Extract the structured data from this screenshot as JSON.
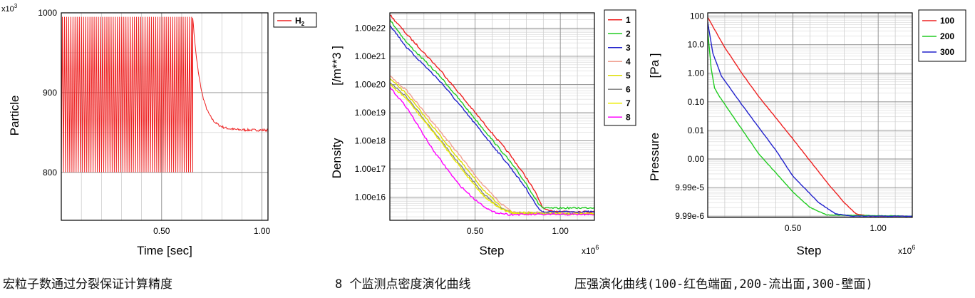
{
  "chart_data": [
    {
      "type": "line",
      "ylabel": "Particle",
      "xlabel": "Time [sec]",
      "y_scale_label": "x10^3",
      "y_scale_label_parts": {
        "base": "x10",
        "exp": "3"
      },
      "x_range": [
        0.0,
        1.03
      ],
      "y_range": [
        740,
        1000
      ],
      "x_ticks": [
        {
          "v": 0.5,
          "label": "0.50"
        },
        {
          "v": 1.0,
          "label": "1.00"
        }
      ],
      "y_ticks": [
        {
          "v": 1000,
          "label": "1000"
        },
        {
          "v": 900,
          "label": "900"
        },
        {
          "v": 800,
          "label": "800"
        }
      ],
      "grid": true,
      "legend_position": "outside-right",
      "series": [
        {
          "name": "H2",
          "name_parts": {
            "base": "H",
            "sub": "2"
          },
          "color": "#ee2222",
          "oscillation": {
            "x_start": 0.0,
            "x_end": 0.655,
            "cycles": 62,
            "high": 995,
            "low": 800
          },
          "decay": {
            "x_start": 0.655,
            "x_end": 1.03,
            "from": 995,
            "to": 853
          },
          "startup": {
            "x": 0.0,
            "from": 745,
            "to": 800
          }
        }
      ]
    },
    {
      "type": "line",
      "ylabel": "Density",
      "yunit": "[/m**3  ]",
      "xlabel": "Step",
      "x_scale_label": "x10^6",
      "x_scale_label_parts": {
        "base": "x10",
        "exp": "6"
      },
      "y_scale": "log",
      "x_range": [
        0.0,
        1.2
      ],
      "y_range": [
        1500000000000000.0,
        3.5e+22
      ],
      "x_ticks": [
        {
          "v": 0.5,
          "label": "0.50"
        },
        {
          "v": 1.0,
          "label": "1.00"
        }
      ],
      "y_ticks": [
        {
          "v": 1e+22,
          "label": "1.00e22"
        },
        {
          "v": 1e+21,
          "label": "1.00e21"
        },
        {
          "v": 1e+20,
          "label": "1.00e20"
        },
        {
          "v": 1e+19,
          "label": "1.00e19"
        },
        {
          "v": 1e+18,
          "label": "1.00e18"
        },
        {
          "v": 1e+17,
          "label": "1.00e17"
        },
        {
          "v": 1e+16,
          "label": "1.00e16"
        }
      ],
      "grid": true,
      "legend_position": "outside-right",
      "series": [
        {
          "name": "1",
          "color": "#ee2222",
          "points": [
            [
              0,
              3e+22
            ],
            [
              0.1,
              6e+21
            ],
            [
              0.3,
              3e+20
            ],
            [
              0.5,
              1e+19
            ],
            [
              0.7,
              3.5e+17
            ],
            [
              0.8,
              5e+16
            ],
            [
              0.85,
              1.6e+16
            ],
            [
              0.9,
              4000000000000000.0
            ],
            [
              0.93,
              3200000000000000.0
            ],
            [
              1.2,
              3000000000000000.0
            ]
          ]
        },
        {
          "name": "2",
          "color": "#22cc22",
          "points": [
            [
              0,
              2e+22
            ],
            [
              0.1,
              3e+21
            ],
            [
              0.3,
              1.8e+20
            ],
            [
              0.5,
              6e+18
            ],
            [
              0.7,
              2e+17
            ],
            [
              0.8,
              3e+16
            ],
            [
              0.87,
              6000000000000000.0
            ],
            [
              0.9,
              4000000000000000.0
            ],
            [
              1.2,
              4200000000000000.0
            ]
          ]
        },
        {
          "name": "3",
          "color": "#2222cc",
          "points": [
            [
              0,
              1.3e+22
            ],
            [
              0.1,
              2e+21
            ],
            [
              0.3,
              1.2e+20
            ],
            [
              0.5,
              4e+18
            ],
            [
              0.7,
              1.3e+17
            ],
            [
              0.8,
              2e+16
            ],
            [
              0.87,
              4000000000000000.0
            ],
            [
              0.9,
              3000000000000000.0
            ],
            [
              1.2,
              3000000000000000.0
            ]
          ]
        },
        {
          "name": "4",
          "color": "#f0a090",
          "points": [
            [
              0,
              2e+20
            ],
            [
              0.1,
              6e+19
            ],
            [
              0.3,
              2e+18
            ],
            [
              0.45,
              1.5e+17
            ],
            [
              0.55,
              2.5e+16
            ],
            [
              0.65,
              6000000000000000.0
            ],
            [
              0.72,
              3000000000000000.0
            ],
            [
              1.2,
              2500000000000000.0
            ]
          ]
        },
        {
          "name": "5",
          "color": "#dddd00",
          "points": [
            [
              0,
              1.6e+20
            ],
            [
              0.1,
              4.5e+19
            ],
            [
              0.3,
              1.4e+18
            ],
            [
              0.45,
              1e+17
            ],
            [
              0.55,
              1.8e+16
            ],
            [
              0.65,
              4500000000000000.0
            ],
            [
              0.72,
              2800000000000000.0
            ],
            [
              1.2,
              2500000000000000.0
            ]
          ]
        },
        {
          "name": "6",
          "color": "#888888",
          "points": [
            [
              0,
              1.2e+20
            ],
            [
              0.1,
              3.5e+19
            ],
            [
              0.3,
              1e+18
            ],
            [
              0.45,
              7e+16
            ],
            [
              0.55,
              1.3e+16
            ],
            [
              0.65,
              4000000000000000.0
            ],
            [
              0.72,
              2700000000000000.0
            ],
            [
              1.2,
              2500000000000000.0
            ]
          ]
        },
        {
          "name": "7",
          "color": "#eeee00",
          "points": [
            [
              0,
              1e+20
            ],
            [
              0.1,
              3e+19
            ],
            [
              0.3,
              9e+17
            ],
            [
              0.45,
              6e+16
            ],
            [
              0.55,
              1.1e+16
            ],
            [
              0.65,
              3800000000000000.0
            ],
            [
              0.72,
              2600000000000000.0
            ],
            [
              1.2,
              2500000000000000.0
            ]
          ]
        },
        {
          "name": "8",
          "color": "#ff00ff",
          "points": [
            [
              0,
              8e+19
            ],
            [
              0.1,
              1.5e+19
            ],
            [
              0.25,
              5e+17
            ],
            [
              0.4,
              3e+16
            ],
            [
              0.5,
              8000000000000000.0
            ],
            [
              0.6,
              3000000000000000.0
            ],
            [
              0.7,
              2400000000000000.0
            ],
            [
              1.2,
              2400000000000000.0
            ]
          ]
        }
      ]
    },
    {
      "type": "line",
      "ylabel": "Pressure",
      "yunit": "[Pa  ]",
      "xlabel": "Step",
      "x_scale_label": "x10^6",
      "x_scale_label_parts": {
        "base": "x10",
        "exp": "6"
      },
      "y_scale": "log",
      "x_range": [
        0.0,
        1.2
      ],
      "y_range": [
        9e-06,
        130
      ],
      "x_ticks": [
        {
          "v": 0.5,
          "label": "0.50"
        },
        {
          "v": 1.0,
          "label": "1.00"
        }
      ],
      "y_ticks": [
        {
          "v": 100,
          "label": "100"
        },
        {
          "v": 10,
          "label": "10.0"
        },
        {
          "v": 1,
          "label": "1.00"
        },
        {
          "v": 0.1,
          "label": "0.10"
        },
        {
          "v": 0.01,
          "label": "0.01"
        },
        {
          "v": 0.001,
          "label": "0.00"
        },
        {
          "v": 0.0001,
          "label": "9.99e-5"
        },
        {
          "v": 1e-05,
          "label": "9.99e-6"
        }
      ],
      "grid": true,
      "legend_position": "outside-right",
      "series": [
        {
          "name": "100",
          "color": "#ee2222",
          "points": [
            [
              0,
              90
            ],
            [
              0.1,
              8
            ],
            [
              0.2,
              1.0
            ],
            [
              0.3,
              0.15
            ],
            [
              0.5,
              0.005
            ],
            [
              0.7,
              0.00015
            ],
            [
              0.8,
              3e-05
            ],
            [
              0.87,
              1.2e-05
            ],
            [
              0.95,
              1e-05
            ],
            [
              1.2,
              1e-05
            ]
          ]
        },
        {
          "name": "200",
          "color": "#22cc22",
          "points": [
            [
              0,
              30
            ],
            [
              0.02,
              1.5
            ],
            [
              0.04,
              0.3
            ],
            [
              0.07,
              0.15
            ],
            [
              0.15,
              0.03
            ],
            [
              0.3,
              0.0015
            ],
            [
              0.5,
              7e-05
            ],
            [
              0.6,
              2e-05
            ],
            [
              0.7,
              1.1e-05
            ],
            [
              1.2,
              1e-05
            ]
          ]
        },
        {
          "name": "300",
          "color": "#2222cc",
          "points": [
            [
              0,
              60
            ],
            [
              0.03,
              5
            ],
            [
              0.08,
              0.8
            ],
            [
              0.2,
              0.08
            ],
            [
              0.4,
              0.002
            ],
            [
              0.5,
              0.00025
            ],
            [
              0.65,
              3e-05
            ],
            [
              0.75,
              1.2e-05
            ],
            [
              0.85,
              1e-05
            ],
            [
              1.2,
              1e-05
            ]
          ]
        }
      ]
    }
  ],
  "captions": [
    "宏粒子数通过分裂保证计算精度",
    "8 个监测点密度演化曲线",
    "压强演化曲线(100-红色端面,200-流出面,300-壁面)"
  ]
}
